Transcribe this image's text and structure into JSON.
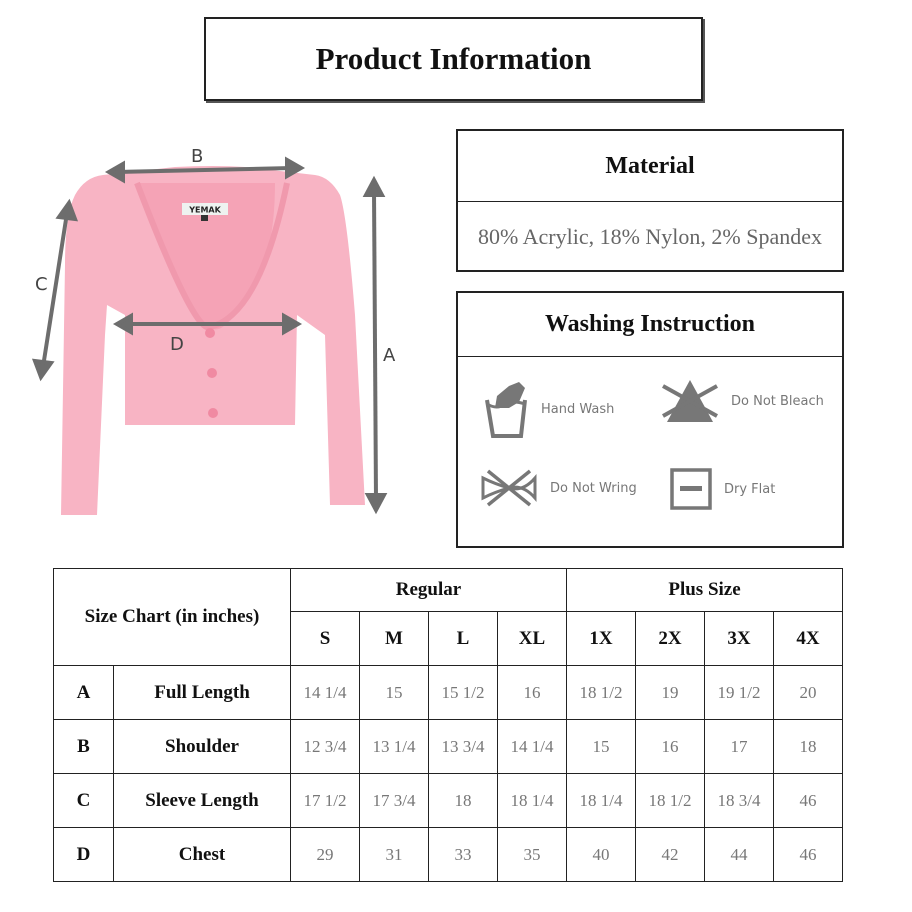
{
  "title": "Product Information",
  "material": {
    "heading": "Material",
    "value": "80% Acrylic, 18% Nylon, 2% Spandex"
  },
  "washing": {
    "heading": "Washing Instruction",
    "items": [
      {
        "label": "Hand Wash",
        "icon": "hand-wash-icon"
      },
      {
        "label": "Do Not Bleach",
        "icon": "do-not-bleach-icon"
      },
      {
        "label": "Do Not Wring",
        "icon": "do-not-wring-icon"
      },
      {
        "label": "Dry Flat",
        "icon": "dry-flat-icon"
      }
    ]
  },
  "diagram": {
    "labels": {
      "a": "A",
      "b": "B",
      "c": "C",
      "d": "D"
    },
    "brand_label": "YEMAK",
    "garment_color": "#f8b4c4",
    "arrow_color": "#6d6d6d"
  },
  "size_chart": {
    "title": "Size Chart (in inches)",
    "groups": [
      "Regular",
      "Plus Size"
    ],
    "sizes": [
      "S",
      "M",
      "L",
      "XL",
      "1X",
      "2X",
      "3X",
      "4X"
    ],
    "rows": [
      {
        "key": "A",
        "name": "Full Length",
        "values": [
          "14 1/4",
          "15",
          "15 1/2",
          "16",
          "18 1/2",
          "19",
          "19 1/2",
          "20"
        ]
      },
      {
        "key": "B",
        "name": "Shoulder",
        "values": [
          "12 3/4",
          "13 1/4",
          "13 3/4",
          "14 1/4",
          "15",
          "16",
          "17",
          "18"
        ]
      },
      {
        "key": "C",
        "name": "Sleeve Length",
        "values": [
          "17 1/2",
          "17 3/4",
          "18",
          "18 1/4",
          "18 1/4",
          "18 1/2",
          "18 3/4",
          "46"
        ]
      },
      {
        "key": "D",
        "name": "Chest",
        "values": [
          "29",
          "31",
          "33",
          "35",
          "40",
          "42",
          "44",
          "46"
        ]
      }
    ]
  }
}
